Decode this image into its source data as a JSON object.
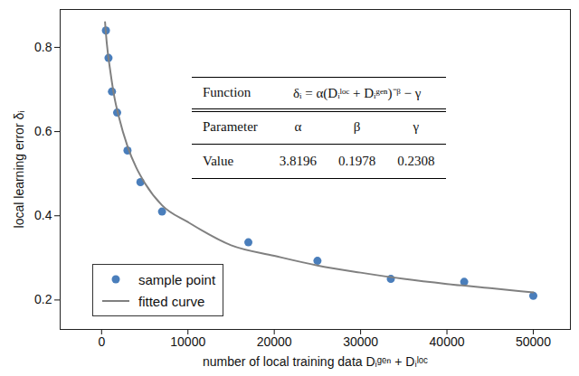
{
  "chart_data": {
    "type": "scatter",
    "xlabel": "number of local training data Dᵢᵍᵉⁿ + Dᵢˡᵒᶜ",
    "ylabel": "local learning error δᵢ",
    "xlim": [
      -4800,
      54300
    ],
    "ylim": [
      0.13,
      0.89
    ],
    "xticks": [
      0,
      10000,
      20000,
      30000,
      40000,
      50000
    ],
    "yticks": [
      0.2,
      0.4,
      0.6,
      0.8
    ],
    "grid": false,
    "legend": "lower left",
    "series": [
      {
        "name": "sample point",
        "type": "scatter",
        "marker": "circle",
        "color": "#4a7ebb",
        "x": [
          500,
          800,
          1200,
          1800,
          3000,
          4500,
          7000,
          17000,
          25000,
          33500,
          42000,
          50000
        ],
        "values": [
          0.84,
          0.775,
          0.695,
          0.645,
          0.555,
          0.48,
          0.41,
          0.337,
          0.293,
          0.25,
          0.243,
          0.21
        ]
      },
      {
        "name": "fitted curve",
        "type": "line",
        "line_style": "solid",
        "color": "#808080",
        "x": [
          400,
          600,
          1000,
          1500,
          2000,
          3000,
          4000,
          5000,
          7000,
          10000,
          15000,
          20000,
          25000,
          30000,
          35000,
          40000,
          45000,
          50000
        ],
        "values": [
          0.86,
          0.81,
          0.745,
          0.68,
          0.635,
          0.565,
          0.515,
          0.478,
          0.425,
          0.385,
          0.33,
          0.305,
          0.282,
          0.265,
          0.25,
          0.238,
          0.228,
          0.218
        ]
      }
    ],
    "table": {
      "rows": [
        [
          "Function",
          "δᵢ = α(Dᵢˡᵒᶜ + Dᵢᵍᵉⁿ)⁻ᵝ − γ"
        ],
        [
          "Parameter",
          "α",
          "β",
          "γ"
        ],
        [
          "Value",
          3.8196,
          0.1978,
          0.2308
        ]
      ]
    }
  }
}
